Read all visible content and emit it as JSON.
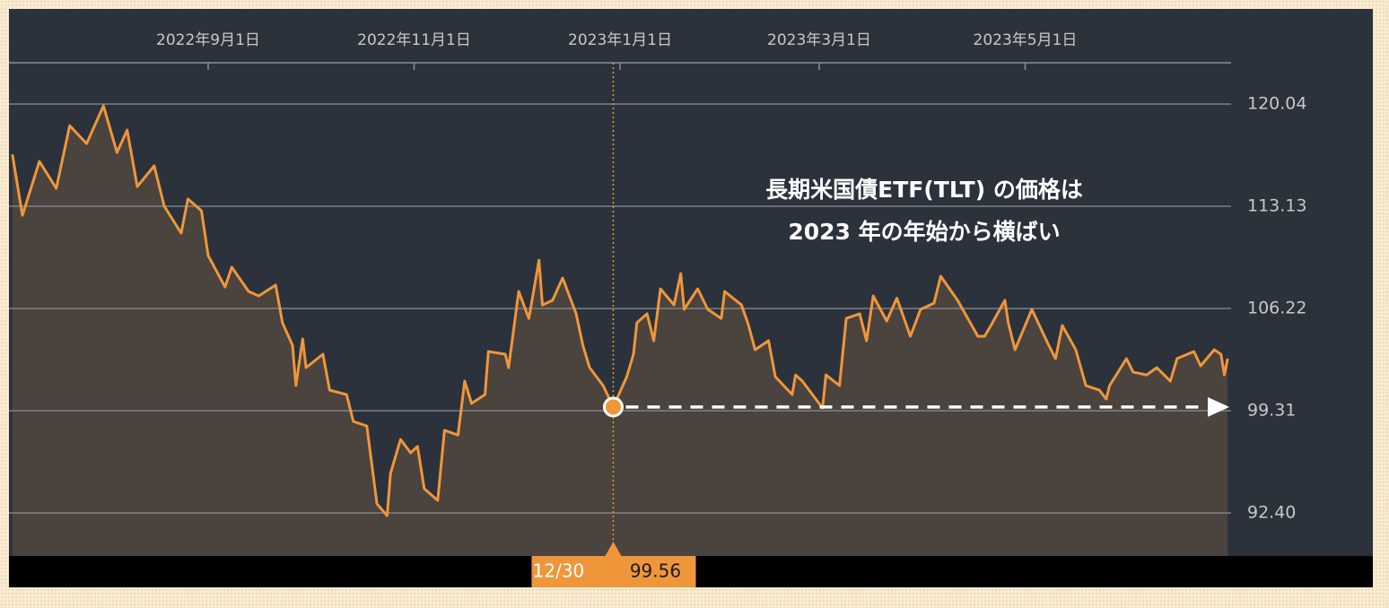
{
  "chart_data": {
    "type": "line",
    "annotation": [
      "長期米国債ETF(TLT) の価格は",
      "2023 年の年始から横ばい"
    ],
    "x": [
      "2022-07-05",
      "2022-07-08",
      "2022-07-13",
      "2022-07-18",
      "2022-07-22",
      "2022-07-27",
      "2022-08-01",
      "2022-08-05",
      "2022-08-08",
      "2022-08-11",
      "2022-08-16",
      "2022-08-19",
      "2022-08-24",
      "2022-08-26",
      "2022-08-30",
      "2022-09-01",
      "2022-09-06",
      "2022-09-08",
      "2022-09-13",
      "2022-09-16",
      "2022-09-21",
      "2022-09-23",
      "2022-09-26",
      "2022-09-27",
      "2022-09-29",
      "2022-09-30",
      "2022-10-05",
      "2022-10-07",
      "2022-10-12",
      "2022-10-14",
      "2022-10-18",
      "2022-10-21",
      "2022-10-24",
      "2022-10-25",
      "2022-10-28",
      "2022-10-31",
      "2022-11-02",
      "2022-11-04",
      "2022-11-08",
      "2022-11-10",
      "2022-11-14",
      "2022-11-16",
      "2022-11-18",
      "2022-11-22",
      "2022-11-23",
      "2022-11-28",
      "2022-11-29",
      "2022-12-02",
      "2022-12-05",
      "2022-12-08",
      "2022-12-09",
      "2022-12-12",
      "2022-12-15",
      "2022-12-19",
      "2022-12-21",
      "2022-12-23",
      "2022-12-27",
      "2022-12-30",
      "2023-01-03",
      "2023-01-05",
      "2023-01-06",
      "2023-01-09",
      "2023-01-11",
      "2023-01-13",
      "2023-01-17",
      "2023-01-19",
      "2023-01-20",
      "2023-01-24",
      "2023-01-27",
      "2023-01-31",
      "2023-02-01",
      "2023-02-06",
      "2023-02-08",
      "2023-02-10",
      "2023-02-14",
      "2023-02-16",
      "2023-02-21",
      "2023-02-22",
      "2023-02-24",
      "2023-03-02",
      "2023-03-03",
      "2023-03-07",
      "2023-03-09",
      "2023-03-13",
      "2023-03-15",
      "2023-03-17",
      "2023-03-21",
      "2023-03-24",
      "2023-03-28",
      "2023-03-31",
      "2023-04-04",
      "2023-04-06",
      "2023-04-11",
      "2023-04-17",
      "2023-04-19",
      "2023-04-21",
      "2023-04-25",
      "2023-04-26",
      "2023-04-28",
      "2023-05-03",
      "2023-05-08",
      "2023-05-10",
      "2023-05-12",
      "2023-05-16",
      "2023-05-19",
      "2023-05-23",
      "2023-05-25",
      "2023-05-26",
      "2023-05-31",
      "2023-06-02",
      "2023-06-06",
      "2023-06-09",
      "2023-06-13",
      "2023-06-15",
      "2023-06-20",
      "2023-06-22",
      "2023-06-26",
      "2023-06-28",
      "2023-06-29",
      "2023-06-30"
    ],
    "series": [
      {
        "color": "#f0963a",
        "values": [
          116.64,
          112.52,
          116.16,
          114.34,
          118.58,
          117.37,
          119.92,
          116.77,
          118.28,
          114.46,
          115.86,
          113.13,
          111.31,
          113.62,
          112.83,
          109.8,
          107.67,
          109.01,
          107.37,
          107.07,
          107.8,
          105.25,
          103.73,
          101.01,
          104.16,
          102.22,
          103.13,
          100.7,
          100.4,
          98.58,
          98.28,
          93.01,
          92.22,
          95.07,
          97.37,
          96.46,
          96.89,
          94.04,
          93.25,
          97.98,
          97.67,
          101.31,
          99.8,
          100.4,
          103.31,
          103.13,
          102.22,
          107.37,
          105.55,
          109.49,
          106.46,
          106.77,
          108.28,
          105.86,
          103.73,
          102.22,
          101.01,
          99.56,
          101.61,
          103.13,
          105.25,
          105.86,
          104.04,
          107.55,
          106.46,
          108.58,
          106.16,
          107.55,
          106.16,
          105.55,
          107.37,
          106.46,
          105.13,
          103.43,
          104.04,
          101.61,
          100.4,
          101.73,
          101.31,
          99.49,
          101.73,
          101.01,
          105.55,
          105.86,
          104.04,
          107.07,
          105.37,
          106.92,
          104.34,
          106.16,
          106.58,
          108.4,
          106.77,
          104.34,
          104.34,
          105.13,
          106.77,
          105.25,
          103.43,
          106.16,
          103.73,
          102.83,
          105.07,
          103.43,
          101.01,
          100.7,
          100.1,
          101.01,
          102.83,
          101.92,
          101.73,
          102.22,
          101.31,
          102.83,
          103.31,
          102.34,
          103.43,
          103.13,
          101.73,
          102.83
        ]
      }
    ],
    "highlight": {
      "x": "2022-12-30",
      "label": "12/30",
      "value": 99.56
    },
    "xlim": [
      "2022-07-04",
      "2023-07-01"
    ],
    "xticks": [
      {
        "value": "2022-09-01",
        "label": "2022年9月1日"
      },
      {
        "value": "2022-11-01",
        "label": "2022年11月1日"
      },
      {
        "value": "2023-01-01",
        "label": "2023年1月1日"
      },
      {
        "value": "2023-03-01",
        "label": "2023年3月1日"
      },
      {
        "value": "2023-05-01",
        "label": "2023年5月1日"
      }
    ],
    "ylim": [
      89.49,
      122.83
    ],
    "yticks": [
      {
        "value": 92.4,
        "label": "92.40"
      },
      99.31,
      106.22,
      113.13,
      120.04
    ],
    "grid": true
  }
}
